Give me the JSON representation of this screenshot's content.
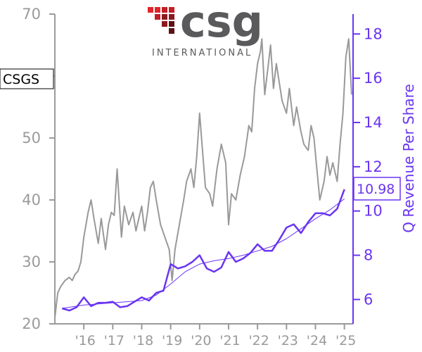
{
  "logo": {
    "name": "csg",
    "subtitle": "INTERNATIONAL",
    "square_colors": [
      "#e0252b",
      "#c21f26",
      "#8a1a1f",
      "#5a1216"
    ]
  },
  "ticker": "CSGS",
  "current_value_label": "10.98",
  "colors": {
    "price": "#999999",
    "revenue": "#6a35f2",
    "trend": "#6a35f2",
    "axis_left": "#9a9a9a",
    "axis_right": "#6a35f2"
  },
  "chart_data": {
    "type": "line",
    "xlabel": "",
    "ylabel_left": "",
    "ylabel_right": "Q Revenue Per Share",
    "x_tick_labels": [
      "'16",
      "'17",
      "'18",
      "'19",
      "'20",
      "'21",
      "'22",
      "'23",
      "'24",
      "'25"
    ],
    "x_ticks": [
      2016,
      2017,
      2018,
      2019,
      2020,
      2021,
      2022,
      2023,
      2024,
      2025
    ],
    "xlim": [
      2015.0,
      2025.3
    ],
    "ylim_left": [
      20,
      70
    ],
    "y_ticks_left": [
      20,
      30,
      40,
      50,
      60,
      70
    ],
    "ylim_right": [
      4.9,
      18.9
    ],
    "y_ticks_right": [
      6,
      8,
      10,
      12,
      14,
      16,
      18
    ],
    "series": [
      {
        "name": "",
        "axis": "left",
        "x": [
          2015.0,
          2015.1,
          2015.2,
          2015.35,
          2015.5,
          2015.6,
          2015.7,
          2015.8,
          2015.9,
          2016.0,
          2016.15,
          2016.25,
          2016.35,
          2016.5,
          2016.6,
          2016.75,
          2016.85,
          2016.95,
          2017.05,
          2017.15,
          2017.3,
          2017.4,
          2017.55,
          2017.7,
          2017.8,
          2017.9,
          2018.0,
          2018.1,
          2018.2,
          2018.3,
          2018.4,
          2018.5,
          2018.65,
          2018.8,
          2018.95,
          2019.05,
          2019.15,
          2019.3,
          2019.45,
          2019.55,
          2019.7,
          2019.8,
          2019.9,
          2020.0,
          2020.1,
          2020.2,
          2020.35,
          2020.45,
          2020.6,
          2020.75,
          2020.9,
          2021.0,
          2021.1,
          2021.25,
          2021.4,
          2021.55,
          2021.7,
          2021.8,
          2021.9,
          2022.0,
          2022.1,
          2022.15,
          2022.25,
          2022.35,
          2022.45,
          2022.55,
          2022.65,
          2022.75,
          2022.85,
          2023.0,
          2023.1,
          2023.25,
          2023.35,
          2023.5,
          2023.6,
          2023.75,
          2023.85,
          2023.95,
          2024.05,
          2024.15,
          2024.3,
          2024.4,
          2024.5,
          2024.6,
          2024.75,
          2024.85,
          2024.95,
          2025.05,
          2025.15,
          2025.25
        ],
        "values": [
          21,
          25,
          26,
          27,
          27.5,
          27,
          28,
          28.5,
          30,
          34,
          38,
          40,
          37,
          33,
          37,
          32,
          36,
          38,
          37.5,
          45,
          34,
          39,
          36,
          38,
          35,
          37,
          39,
          35,
          38,
          42,
          43,
          40,
          36,
          34,
          32,
          27,
          32,
          36,
          40,
          43,
          45,
          42,
          47,
          54,
          48,
          42,
          41,
          39,
          45,
          49,
          46,
          36,
          41,
          40,
          44,
          47,
          52,
          51,
          58,
          62,
          64,
          66,
          57,
          61,
          65,
          58,
          62,
          59,
          56,
          54,
          58,
          52,
          55,
          51,
          49,
          48,
          52,
          50,
          45,
          40,
          43,
          47,
          44,
          46,
          43,
          49,
          54,
          63,
          66,
          57
        ]
      },
      {
        "name": "",
        "axis": "right",
        "x": [
          2015.25,
          2015.5,
          2015.75,
          2016.0,
          2016.25,
          2016.5,
          2016.75,
          2017.0,
          2017.25,
          2017.5,
          2017.75,
          2018.0,
          2018.25,
          2018.5,
          2018.75,
          2019.0,
          2019.25,
          2019.5,
          2019.75,
          2020.0,
          2020.25,
          2020.5,
          2020.75,
          2021.0,
          2021.25,
          2021.5,
          2021.75,
          2022.0,
          2022.25,
          2022.5,
          2022.75,
          2023.0,
          2023.25,
          2023.5,
          2023.75,
          2024.0,
          2024.25,
          2024.5,
          2024.75,
          2025.0
        ],
        "values": [
          5.6,
          5.5,
          5.65,
          6.1,
          5.7,
          5.85,
          5.85,
          5.9,
          5.65,
          5.7,
          5.9,
          6.1,
          5.95,
          6.3,
          6.4,
          7.6,
          7.4,
          7.5,
          7.7,
          8.0,
          7.4,
          7.25,
          7.45,
          8.15,
          7.7,
          7.85,
          8.1,
          8.5,
          8.2,
          8.2,
          8.7,
          9.25,
          9.4,
          9.0,
          9.5,
          9.9,
          9.9,
          9.8,
          10.1,
          10.98
        ]
      },
      {
        "name": "",
        "axis": "right",
        "style": "trend",
        "x": [
          2015.25,
          2016.0,
          2017.0,
          2018.0,
          2018.5,
          2019.0,
          2019.5,
          2020.0,
          2020.5,
          2021.0,
          2021.5,
          2022.0,
          2022.5,
          2023.0,
          2023.5,
          2024.0,
          2024.5,
          2025.0
        ],
        "values": [
          5.6,
          5.75,
          5.85,
          5.95,
          6.2,
          6.7,
          7.25,
          7.6,
          7.75,
          7.85,
          8.0,
          8.2,
          8.4,
          8.75,
          9.2,
          9.65,
          10.05,
          10.55
        ]
      }
    ]
  }
}
